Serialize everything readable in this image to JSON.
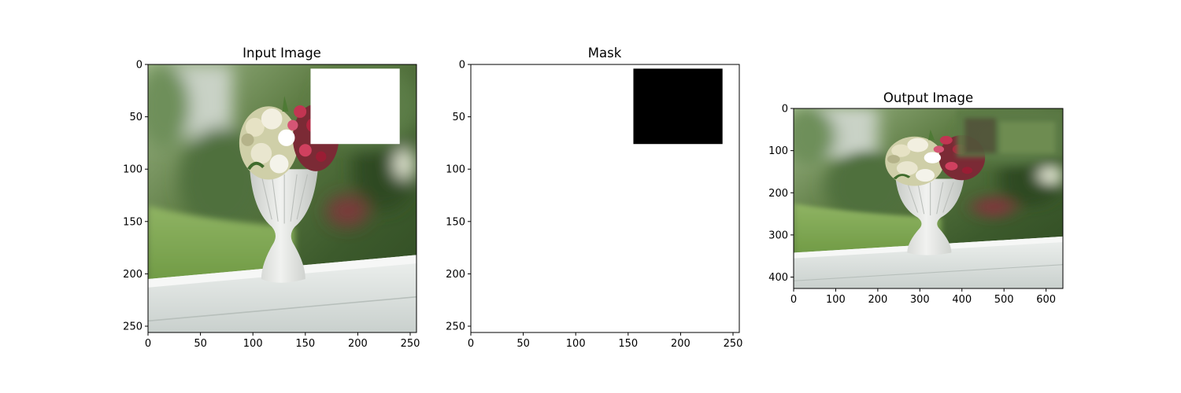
{
  "chart_data": [
    {
      "type": "image",
      "title": "Input Image",
      "xlim": [
        0,
        256
      ],
      "ylim": [
        256,
        0
      ],
      "xticks": [
        0,
        50,
        100,
        150,
        200,
        250
      ],
      "yticks": [
        0,
        50,
        100,
        150,
        200,
        250
      ],
      "mask_region": {
        "x0": 155,
        "x1": 240,
        "y0": 4,
        "y1": 76,
        "fill": "#ffffff"
      },
      "image_description": "white fluted pedestal vase with white, cream and crimson flowers on a white porch railing, blurred green garden background; top-right rectangle blanked white"
    },
    {
      "type": "image",
      "title": "Mask",
      "xlim": [
        0,
        256
      ],
      "ylim": [
        256,
        0
      ],
      "xticks": [
        0,
        50,
        100,
        150,
        200,
        250
      ],
      "yticks": [
        0,
        50,
        100,
        150,
        200,
        250
      ],
      "mask_region": {
        "x0": 155,
        "x1": 240,
        "y0": 4,
        "y1": 76,
        "fill": "#000000"
      },
      "background": "#ffffff"
    },
    {
      "type": "image",
      "title": "Output Image",
      "xlim": [
        0,
        640
      ],
      "ylim": [
        427,
        0
      ],
      "xticks": [
        0,
        100,
        200,
        300,
        400,
        500,
        600
      ],
      "yticks": [
        0,
        100,
        200,
        300,
        400
      ],
      "image_description": "same vase and flowers scene, inpainted top-right region filled with blurred greenery"
    }
  ],
  "colors": {
    "vase": "#e4e6e3",
    "flower_red": "#b0243f",
    "flower_cream": "#e6e2c4",
    "greenery_dark": "#3f5e2e",
    "greenery_light": "#7fa65a",
    "rail": "#dde2e0"
  }
}
